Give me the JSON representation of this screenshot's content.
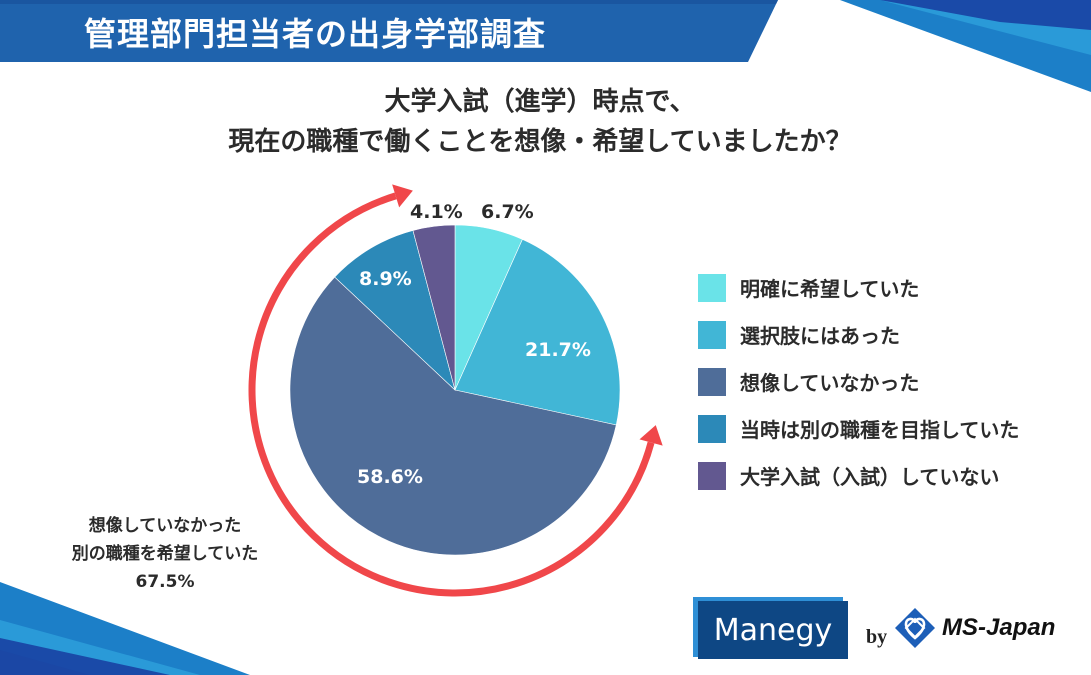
{
  "header": {
    "title": "管理部門担当者の出身学部調査"
  },
  "question": {
    "line1": "大学入試（進学）時点で、",
    "line2": "現在の職種で働くことを想像・希望していましたか？"
  },
  "colors": {
    "banner": "#1f63ad",
    "arrow": "#f0474a",
    "slice_1": "#6ae3e8",
    "slice_2": "#41b6d6",
    "slice_3": "#4f6d99",
    "slice_4": "#2c89b8",
    "slice_5": "#625890"
  },
  "chart_data": {
    "type": "pie",
    "title": "大学入試（進学）時点で、現在の職種で働くことを想像・希望していましたか？",
    "categories": [
      "明確に希望していた",
      "選択肢にはあった",
      "想像していなかった",
      "当時は別の職種を目指していた",
      "大学入試（入試）していない"
    ],
    "values": [
      6.7,
      21.7,
      58.6,
      8.9,
      4.1
    ],
    "labels": [
      "6.7%",
      "21.7%",
      "58.6%",
      "8.9%",
      "4.1%"
    ],
    "start_angle": "12 o'clock, clockwise",
    "legend_position": "right",
    "annotation": {
      "text": "想像していなかった / 別の職種を希望していた 67.5%",
      "covers": [
        "想像していなかった",
        "当時は別の職種を目指していた"
      ],
      "value": 67.5
    }
  },
  "slice_labels": {
    "s1": "6.7%",
    "s2": "21.7%",
    "s3": "58.6%",
    "s4": "8.9%",
    "s5": "4.1%"
  },
  "legend": {
    "items": [
      {
        "label": "明確に希望していた"
      },
      {
        "label": "選択肢にはあった"
      },
      {
        "label": "想像していなかった"
      },
      {
        "label": "当時は別の職種を目指していた"
      },
      {
        "label": "大学入試（入試）していない"
      }
    ]
  },
  "annotation": {
    "line1": "想像していなかった",
    "line2": "別の職種を希望していた",
    "line3": "67.5%"
  },
  "footer": {
    "brand": "Manegy",
    "by": "by",
    "company": "MS-Japan"
  }
}
